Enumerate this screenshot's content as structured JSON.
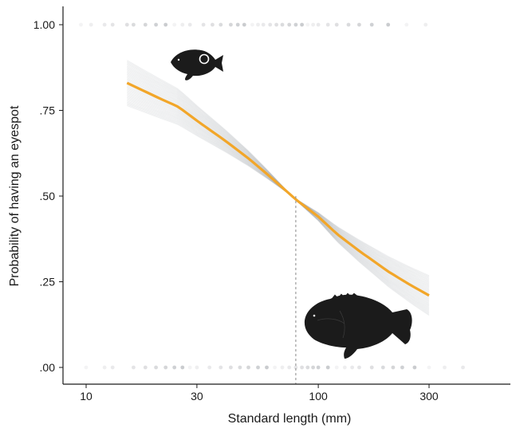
{
  "chart_data": {
    "type": "line",
    "xlabel": "Standard length (mm)",
    "ylabel": "Probability of having an eyespot",
    "x_scale": "log10",
    "xlim": [
      7.5,
      600
    ],
    "ylim": [
      -0.04,
      1.05
    ],
    "x_ticks": [
      10,
      30,
      100,
      300
    ],
    "x_tick_labels": [
      "10",
      "30",
      "100",
      "300"
    ],
    "y_ticks": [
      0,
      0.25,
      0.5,
      0.75,
      1.0
    ],
    "y_tick_labels": [
      ".00",
      ".25",
      ".50",
      ".75",
      "1.00"
    ],
    "grid": false,
    "legend": "none",
    "fit_series": {
      "x": [
        15,
        20,
        25,
        30,
        40,
        50,
        60,
        70,
        80,
        100,
        120,
        150,
        200,
        250,
        300
      ],
      "y": [
        0.83,
        0.79,
        0.76,
        0.72,
        0.66,
        0.61,
        0.565,
        0.525,
        0.49,
        0.44,
        0.39,
        0.34,
        0.28,
        0.24,
        0.21
      ]
    },
    "confidence_band": {
      "x": [
        15,
        300
      ],
      "upper": [
        0.87,
        0.3
      ],
      "lower": [
        0.78,
        0.14
      ]
    },
    "reference_line": {
      "x": 80,
      "label": ""
    },
    "observations_y1": [
      9.5,
      10.5,
      12,
      13,
      15,
      16,
      18,
      20,
      22,
      24,
      26,
      28,
      32,
      35,
      38,
      42,
      45,
      48,
      52,
      55,
      58,
      62,
      66,
      70,
      75,
      80,
      85,
      90,
      95,
      100,
      110,
      120,
      135,
      150,
      170,
      200,
      240,
      290
    ],
    "observations_y0": [
      10,
      12,
      13,
      16,
      18,
      20,
      22,
      24,
      26,
      28,
      30,
      34,
      38,
      42,
      46,
      50,
      55,
      60,
      65,
      70,
      75,
      80,
      85,
      90,
      95,
      100,
      110,
      120,
      130,
      140,
      150,
      170,
      190,
      210,
      230,
      260,
      300,
      350,
      420
    ],
    "colors": {
      "fit_line": "#f2a629",
      "bootstrap_lines": "#8a8f96",
      "points": "#9a9da3",
      "axis": "#1a1a1a"
    },
    "icons": [
      "fish-silhouette-with-eyespot",
      "fish-silhouette-no-eyespot"
    ]
  }
}
